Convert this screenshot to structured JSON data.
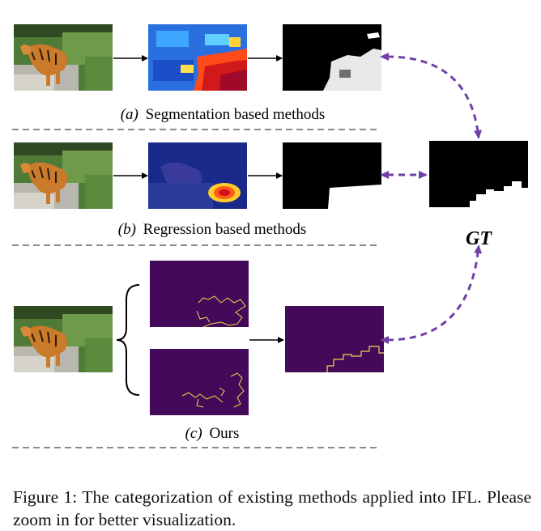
{
  "figure": {
    "rows": [
      {
        "id": "a",
        "marker": "(a)",
        "label": "Segmentation based methods"
      },
      {
        "id": "b",
        "marker": "(b)",
        "label": "Regression based methods"
      },
      {
        "id": "c",
        "marker": "(c)",
        "label": "Ours"
      }
    ],
    "gt_label": "GT",
    "colors": {
      "arrow_dashed": "#7040a8",
      "separator": "#8a8a8a",
      "mask_bg": "#000000",
      "mask_fg": "#ffffff",
      "edge_bg": "#440a5a",
      "edge_line": "#e8d84a"
    }
  },
  "caption": {
    "label": "Figure 1:",
    "text": "The categorization of existing methods applied into IFL. Please zoom in for better visualization."
  }
}
